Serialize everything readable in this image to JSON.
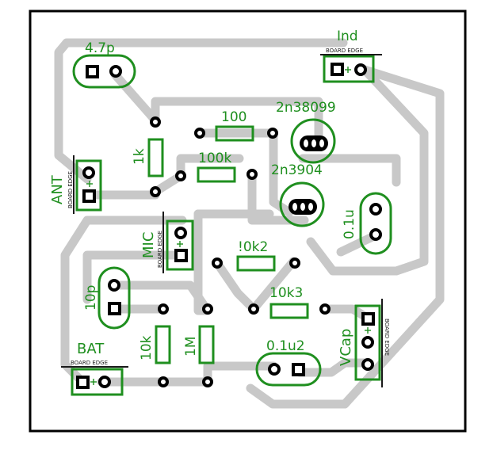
{
  "colors": {
    "background": "#ffffff",
    "board_outline": "#000000",
    "trace": "#c8c8c8",
    "silkscreen": "#1f8f1f",
    "pad_black": "#000000",
    "pad_white": "#ffffff",
    "edge_text": "#1a1a1a"
  },
  "labels": {
    "cap_4p7": "4.7p",
    "ind": "Ind",
    "r_100": "100",
    "q1": "2n38099",
    "r_1k": "1k",
    "r_100k": "100k",
    "q2": "2n3904",
    "ant": "ANT",
    "cap_0p1u": "0.1u",
    "mic": "MIC",
    "r_10k2": "!0k2",
    "cap_10p": "10p",
    "r_10k3": "10k3",
    "bat": "BAT",
    "r_10k": "10k",
    "r_1m": "1M",
    "cap_0p1u2": "0.1u2",
    "vcap": "VCap",
    "edge_ind": "BOARD EDGE",
    "edge_ant": "BOARD EDGE",
    "edge_mic": "BOARD EDGE",
    "edge_bat": "BOARD EDGE",
    "edge_vcap": "BOARD EDGE"
  }
}
